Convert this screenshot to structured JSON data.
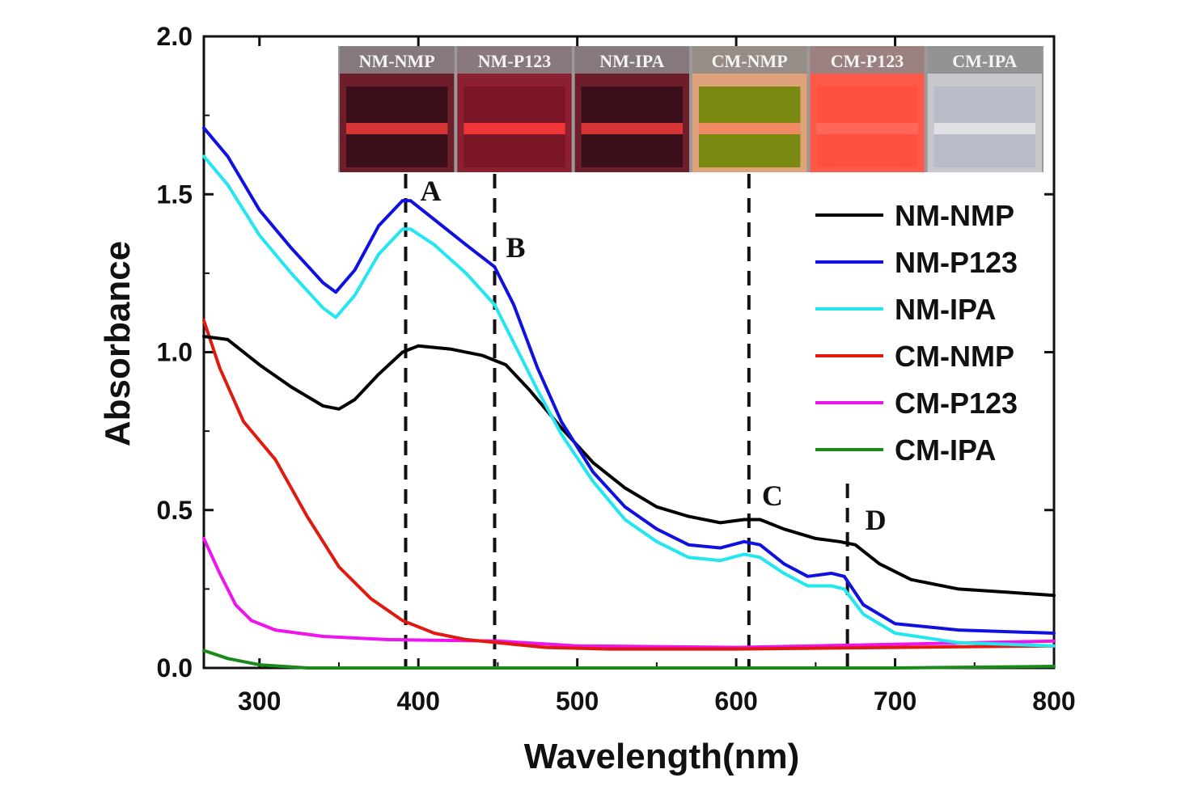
{
  "chart_data": {
    "type": "line",
    "title": "",
    "xlabel": "Wavelength(nm)",
    "ylabel": "Absorbance",
    "xlim": [
      265,
      800
    ],
    "ylim": [
      0.0,
      2.0
    ],
    "xticks": [
      300,
      400,
      500,
      600,
      700,
      800
    ],
    "xtick_labels": [
      "300",
      "400",
      "500",
      "600",
      "700",
      "800"
    ],
    "yticks": [
      0.0,
      0.5,
      1.0,
      1.5,
      2.0
    ],
    "ytick_labels": [
      "0.0",
      "0.5",
      "1.0",
      "1.5",
      "2.0"
    ],
    "legend_position": "right",
    "series": [
      {
        "name": "NM-NMP",
        "color": "#000000",
        "points": [
          [
            265,
            1.05
          ],
          [
            280,
            1.04
          ],
          [
            300,
            0.96
          ],
          [
            320,
            0.89
          ],
          [
            340,
            0.83
          ],
          [
            350,
            0.82
          ],
          [
            360,
            0.85
          ],
          [
            375,
            0.93
          ],
          [
            390,
            1.0
          ],
          [
            400,
            1.02
          ],
          [
            420,
            1.01
          ],
          [
            440,
            0.99
          ],
          [
            455,
            0.96
          ],
          [
            470,
            0.88
          ],
          [
            490,
            0.76
          ],
          [
            510,
            0.65
          ],
          [
            530,
            0.57
          ],
          [
            550,
            0.51
          ],
          [
            570,
            0.48
          ],
          [
            590,
            0.46
          ],
          [
            605,
            0.47
          ],
          [
            615,
            0.47
          ],
          [
            630,
            0.44
          ],
          [
            650,
            0.41
          ],
          [
            665,
            0.4
          ],
          [
            675,
            0.39
          ],
          [
            690,
            0.33
          ],
          [
            710,
            0.28
          ],
          [
            740,
            0.25
          ],
          [
            770,
            0.24
          ],
          [
            800,
            0.23
          ]
        ]
      },
      {
        "name": "NM-P123",
        "color": "#1010e0",
        "points": [
          [
            265,
            1.71
          ],
          [
            280,
            1.62
          ],
          [
            300,
            1.45
          ],
          [
            320,
            1.33
          ],
          [
            340,
            1.22
          ],
          [
            348,
            1.19
          ],
          [
            360,
            1.26
          ],
          [
            375,
            1.4
          ],
          [
            390,
            1.48
          ],
          [
            395,
            1.48
          ],
          [
            410,
            1.42
          ],
          [
            430,
            1.34
          ],
          [
            448,
            1.27
          ],
          [
            460,
            1.15
          ],
          [
            475,
            0.95
          ],
          [
            490,
            0.78
          ],
          [
            510,
            0.62
          ],
          [
            530,
            0.51
          ],
          [
            550,
            0.44
          ],
          [
            570,
            0.39
          ],
          [
            590,
            0.38
          ],
          [
            605,
            0.4
          ],
          [
            615,
            0.39
          ],
          [
            630,
            0.33
          ],
          [
            645,
            0.29
          ],
          [
            660,
            0.3
          ],
          [
            668,
            0.29
          ],
          [
            680,
            0.2
          ],
          [
            700,
            0.14
          ],
          [
            740,
            0.12
          ],
          [
            800,
            0.11
          ]
        ]
      },
      {
        "name": "NM-IPA",
        "color": "#22e6f0",
        "points": [
          [
            265,
            1.62
          ],
          [
            280,
            1.53
          ],
          [
            300,
            1.37
          ],
          [
            320,
            1.25
          ],
          [
            340,
            1.14
          ],
          [
            348,
            1.11
          ],
          [
            360,
            1.18
          ],
          [
            375,
            1.31
          ],
          [
            390,
            1.39
          ],
          [
            395,
            1.39
          ],
          [
            410,
            1.34
          ],
          [
            430,
            1.25
          ],
          [
            448,
            1.15
          ],
          [
            460,
            1.03
          ],
          [
            475,
            0.88
          ],
          [
            490,
            0.74
          ],
          [
            510,
            0.59
          ],
          [
            530,
            0.47
          ],
          [
            550,
            0.4
          ],
          [
            570,
            0.35
          ],
          [
            590,
            0.34
          ],
          [
            605,
            0.36
          ],
          [
            615,
            0.35
          ],
          [
            630,
            0.3
          ],
          [
            645,
            0.26
          ],
          [
            660,
            0.26
          ],
          [
            668,
            0.25
          ],
          [
            680,
            0.17
          ],
          [
            700,
            0.11
          ],
          [
            740,
            0.08
          ],
          [
            800,
            0.07
          ]
        ]
      },
      {
        "name": "CM-NMP",
        "color": "#e01a10",
        "points": [
          [
            265,
            1.1
          ],
          [
            275,
            0.95
          ],
          [
            290,
            0.78
          ],
          [
            310,
            0.66
          ],
          [
            330,
            0.48
          ],
          [
            350,
            0.32
          ],
          [
            370,
            0.22
          ],
          [
            390,
            0.15
          ],
          [
            410,
            0.11
          ],
          [
            430,
            0.09
          ],
          [
            450,
            0.08
          ],
          [
            480,
            0.065
          ],
          [
            520,
            0.06
          ],
          [
            600,
            0.06
          ],
          [
            700,
            0.065
          ],
          [
            800,
            0.07
          ]
        ]
      },
      {
        "name": "CM-P123",
        "color": "#ee14ee",
        "points": [
          [
            265,
            0.41
          ],
          [
            275,
            0.3
          ],
          [
            285,
            0.2
          ],
          [
            295,
            0.15
          ],
          [
            310,
            0.12
          ],
          [
            340,
            0.1
          ],
          [
            380,
            0.09
          ],
          [
            450,
            0.085
          ],
          [
            500,
            0.07
          ],
          [
            600,
            0.065
          ],
          [
            700,
            0.075
          ],
          [
            800,
            0.085
          ]
        ]
      },
      {
        "name": "CM-IPA",
        "color": "#1a8a1a",
        "points": [
          [
            265,
            0.055
          ],
          [
            280,
            0.03
          ],
          [
            300,
            0.01
          ],
          [
            330,
            0.0
          ],
          [
            500,
            0.0
          ],
          [
            700,
            0.0
          ],
          [
            800,
            0.005
          ]
        ]
      }
    ],
    "reference_lines": [
      {
        "label": "A",
        "x": 392
      },
      {
        "label": "B",
        "x": 448
      },
      {
        "label": "C",
        "x": 608
      },
      {
        "label": "D",
        "x": 670
      }
    ],
    "inset": {
      "vial_labels": [
        "NM-NMP",
        "NM-P123",
        "NM-IPA",
        "CM-NMP",
        "CM-P123",
        "CM-IPA"
      ]
    }
  }
}
